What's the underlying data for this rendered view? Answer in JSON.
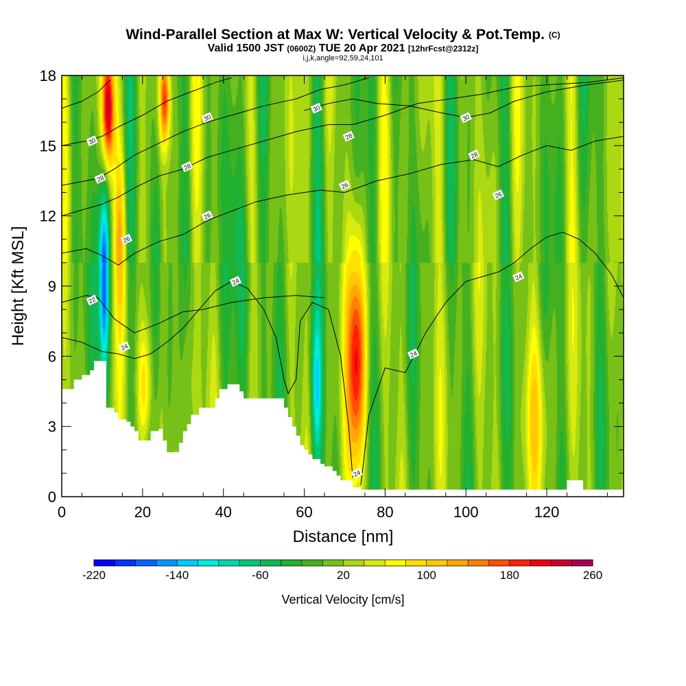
{
  "chart_data": {
    "type": "heatmap",
    "title": "Wind-Parallel Section at Max W: Vertical Velocity & Pot.Temp.",
    "title_mark": "(C)",
    "subtitle_parts": [
      "Valid 1500 JST ",
      "(0600Z)",
      " TUE 20 Apr 2021 ",
      "[12hrFcst@2312z]"
    ],
    "subtitle2": "i,j,k,angle=92,59,24,101",
    "xlabel": "Distance [nm]",
    "ylabel": "Height [Kft MSL]",
    "xlim": [
      0,
      139
    ],
    "ylim": [
      0,
      18
    ],
    "x_ticks": [
      0,
      20,
      40,
      60,
      80,
      100,
      120
    ],
    "y_ticks": [
      0,
      3,
      6,
      9,
      12,
      15,
      18
    ],
    "colorbar": {
      "label": "Vertical Velocity [cm/s]",
      "min": -220,
      "max": 260,
      "step": 20,
      "tick_labels": [
        -220,
        -140,
        -60,
        20,
        100,
        180,
        260
      ],
      "colors": [
        "#0000ff",
        "#0033ff",
        "#0066ff",
        "#0099ff",
        "#00ccff",
        "#00eedd",
        "#00d8aa",
        "#00c87a",
        "#11b855",
        "#22b030",
        "#44b020",
        "#77c018",
        "#aad812",
        "#d8ea10",
        "#ffff00",
        "#ffe000",
        "#ffc800",
        "#ffa800",
        "#ff8000",
        "#ff5000",
        "#ff2000",
        "#ee0010",
        "#cc0030",
        "#aa0055",
        "#880070",
        "#660088"
      ]
    },
    "terrain": [
      [
        0,
        4.6
      ],
      [
        2,
        4.6
      ],
      [
        3,
        5.0
      ],
      [
        5,
        5.2
      ],
      [
        7,
        5.4
      ],
      [
        8,
        5.8
      ],
      [
        10,
        5.8
      ],
      [
        11,
        3.8
      ],
      [
        12,
        3.8
      ],
      [
        13,
        3.6
      ],
      [
        14,
        3.3
      ],
      [
        16,
        3.2
      ],
      [
        17,
        3.0
      ],
      [
        18,
        2.8
      ],
      [
        19,
        2.4
      ],
      [
        21,
        2.4
      ],
      [
        22,
        2.8
      ],
      [
        24,
        2.9
      ],
      [
        25,
        2.4
      ],
      [
        26,
        1.9
      ],
      [
        28,
        1.9
      ],
      [
        29,
        2.3
      ],
      [
        30,
        2.8
      ],
      [
        31,
        3.1
      ],
      [
        32,
        3.5
      ],
      [
        34,
        3.8
      ],
      [
        36,
        3.8
      ],
      [
        38,
        4.2
      ],
      [
        39,
        4.6
      ],
      [
        41,
        4.8
      ],
      [
        43,
        4.8
      ],
      [
        44,
        4.5
      ],
      [
        45,
        4.2
      ],
      [
        47,
        4.2
      ],
      [
        54,
        4.2
      ],
      [
        55,
        3.8
      ],
      [
        56,
        3.4
      ],
      [
        57,
        3.0
      ],
      [
        58,
        2.6
      ],
      [
        59,
        2.2
      ],
      [
        60,
        2.0
      ],
      [
        61,
        1.8
      ],
      [
        62,
        1.6
      ],
      [
        64,
        1.4
      ],
      [
        65,
        1.3
      ],
      [
        67,
        1.1
      ],
      [
        68,
        0.9
      ],
      [
        69,
        0.7
      ],
      [
        71,
        0.7
      ],
      [
        72,
        0.4
      ],
      [
        74,
        0.3
      ],
      [
        124,
        0.3
      ],
      [
        125,
        0.7
      ],
      [
        128,
        0.7
      ],
      [
        129,
        0.3
      ],
      [
        139,
        0.3
      ]
    ],
    "updrafts": [
      {
        "x": 73,
        "y": 5.8,
        "wx": 2.2,
        "wy": 4.8,
        "w": 200
      },
      {
        "x": 11.5,
        "y": 16.5,
        "wx": 1.5,
        "wy": 2.5,
        "w": 220
      },
      {
        "x": 25.5,
        "y": 17.0,
        "wx": 1.3,
        "wy": 2.0,
        "w": 180
      },
      {
        "x": 20.5,
        "y": 4.5,
        "wx": 1.8,
        "wy": 3.0,
        "w": 100
      },
      {
        "x": 14.5,
        "y": 11.0,
        "wx": 1.6,
        "wy": 4.0,
        "w": 90
      },
      {
        "x": 117,
        "y": 3.5,
        "wx": 3.0,
        "wy": 3.5,
        "w": 60
      },
      {
        "x": 31,
        "y": 5.0,
        "wx": 1.5,
        "wy": 4.0,
        "w": 60
      }
    ],
    "downdrafts": [
      {
        "x": 10.5,
        "y": 9.0,
        "wx": 1.3,
        "wy": 4.5,
        "w": -200
      },
      {
        "x": 23.5,
        "y": 9.5,
        "wx": 1.3,
        "wy": 6.0,
        "w": -90
      },
      {
        "x": 63,
        "y": 4.5,
        "wx": 1.5,
        "wy": 3.5,
        "w": -110
      },
      {
        "x": 45,
        "y": 9.0,
        "wx": 3.0,
        "wy": 5.0,
        "w": -60
      }
    ],
    "theta_contours": [
      {
        "value": 22,
        "label": "22",
        "points": [
          [
            0,
            8.3
          ],
          [
            6,
            8.6
          ],
          [
            9,
            8.5
          ],
          [
            13,
            7.6
          ],
          [
            18,
            7.0
          ],
          [
            24,
            7.4
          ],
          [
            30,
            7.9
          ],
          [
            35,
            8.0
          ],
          [
            42,
            8.3
          ],
          [
            50,
            8.5
          ],
          [
            58,
            8.6
          ],
          [
            65,
            8.5
          ]
        ]
      },
      {
        "value": 24,
        "label": "24",
        "points": [
          [
            0,
            6.8
          ],
          [
            5,
            6.6
          ],
          [
            10,
            6.2
          ],
          [
            14,
            6.1
          ],
          [
            18,
            5.9
          ],
          [
            22,
            6.1
          ],
          [
            26,
            6.6
          ],
          [
            30,
            7.2
          ],
          [
            34,
            8.0
          ],
          [
            38,
            8.8
          ],
          [
            42,
            9.2
          ],
          [
            46,
            8.9
          ],
          [
            50,
            8.0
          ],
          [
            53,
            6.8
          ],
          [
            55,
            5.0
          ],
          [
            56,
            4.4
          ],
          [
            58,
            5.0
          ],
          [
            59,
            7.5
          ],
          [
            62,
            8.3
          ],
          [
            66,
            8.0
          ],
          [
            69,
            6.0
          ],
          [
            71,
            3.0
          ],
          [
            72,
            0.8
          ]
        ]
      },
      {
        "value": 24,
        "label": "24",
        "points": [
          [
            74,
            0.5
          ],
          [
            76,
            3.5
          ],
          [
            80,
            5.5
          ],
          [
            85,
            5.3
          ],
          [
            90,
            7.0
          ],
          [
            95,
            8.3
          ],
          [
            100,
            9.2
          ],
          [
            104,
            9.4
          ],
          [
            108,
            9.6
          ],
          [
            112,
            10.0
          ],
          [
            116,
            10.6
          ],
          [
            120,
            11.1
          ],
          [
            124,
            11.3
          ],
          [
            128,
            11.0
          ],
          [
            132,
            10.4
          ],
          [
            136,
            9.5
          ],
          [
            139,
            8.5
          ]
        ]
      },
      {
        "value": 26,
        "label": "26",
        "points": [
          [
            0,
            10.4
          ],
          [
            6,
            10.6
          ],
          [
            10,
            10.3
          ],
          [
            14,
            9.9
          ],
          [
            18,
            10.4
          ],
          [
            24,
            10.9
          ],
          [
            30,
            11.2
          ],
          [
            36,
            11.8
          ],
          [
            42,
            12.2
          ],
          [
            48,
            12.6
          ],
          [
            56,
            12.9
          ],
          [
            64,
            13.1
          ],
          [
            70,
            13.0
          ],
          [
            78,
            13.5
          ],
          [
            86,
            13.8
          ],
          [
            94,
            14.2
          ],
          [
            102,
            14.4
          ],
          [
            108,
            14.1
          ],
          [
            114,
            14.6
          ],
          [
            120,
            15.0
          ],
          [
            126,
            14.8
          ],
          [
            132,
            15.2
          ],
          [
            139,
            15.4
          ]
        ]
      },
      {
        "value": 28,
        "label": "28",
        "points": [
          [
            0,
            12.0
          ],
          [
            6,
            12.3
          ],
          [
            10,
            12.5
          ],
          [
            14,
            12.8
          ],
          [
            18,
            13.2
          ],
          [
            24,
            13.7
          ],
          [
            30,
            14.0
          ],
          [
            36,
            14.5
          ],
          [
            42,
            14.8
          ],
          [
            50,
            15.2
          ],
          [
            58,
            15.6
          ],
          [
            66,
            15.9
          ],
          [
            72,
            15.9
          ],
          [
            80,
            16.3
          ],
          [
            88,
            16.8
          ],
          [
            96,
            17.0
          ],
          [
            104,
            17.2
          ],
          [
            112,
            17.5
          ],
          [
            120,
            17.6
          ],
          [
            130,
            17.7
          ],
          [
            139,
            17.9
          ]
        ]
      },
      {
        "value": 28,
        "label": "28",
        "points": [
          [
            0,
            13.3
          ],
          [
            6,
            13.5
          ],
          [
            9,
            13.6
          ],
          [
            13,
            14.0
          ],
          [
            18,
            14.6
          ],
          [
            24,
            15.1
          ],
          [
            30,
            15.6
          ],
          [
            36,
            16.0
          ],
          [
            42,
            16.3
          ],
          [
            50,
            16.7
          ],
          [
            58,
            17.0
          ],
          [
            64,
            17.4
          ],
          [
            70,
            17.6
          ],
          [
            76,
            17.9
          ]
        ]
      },
      {
        "value": 30,
        "label": "30",
        "points": [
          [
            0,
            15.0
          ],
          [
            6,
            15.2
          ],
          [
            10,
            15.4
          ],
          [
            14,
            15.8
          ],
          [
            20,
            16.3
          ],
          [
            26,
            16.9
          ],
          [
            32,
            17.3
          ],
          [
            38,
            17.7
          ],
          [
            42,
            17.9
          ]
        ]
      },
      {
        "value": 30,
        "label": "30",
        "points": [
          [
            0,
            16.6
          ],
          [
            5,
            16.9
          ],
          [
            9,
            17.3
          ],
          [
            12,
            17.8
          ]
        ]
      },
      {
        "value": 30,
        "label": "30",
        "points": [
          [
            60,
            16.5
          ],
          [
            66,
            16.8
          ],
          [
            72,
            17.0
          ],
          [
            78,
            16.8
          ],
          [
            86,
            16.7
          ],
          [
            94,
            16.4
          ],
          [
            100,
            16.2
          ],
          [
            106,
            16.4
          ],
          [
            112,
            16.9
          ],
          [
            120,
            17.3
          ],
          [
            130,
            17.6
          ],
          [
            139,
            17.8
          ]
        ]
      }
    ],
    "contour_labels": [
      {
        "text": "30",
        "x": 7.5,
        "y": 15.2
      },
      {
        "text": "30",
        "x": 36,
        "y": 16.2
      },
      {
        "text": "30",
        "x": 63,
        "y": 16.6
      },
      {
        "text": "30",
        "x": 100,
        "y": 16.2
      },
      {
        "text": "28",
        "x": 9.5,
        "y": 13.6
      },
      {
        "text": "28",
        "x": 31,
        "y": 14.1
      },
      {
        "text": "28",
        "x": 71,
        "y": 15.4
      },
      {
        "text": "28",
        "x": 102,
        "y": 14.6
      },
      {
        "text": "26",
        "x": 36,
        "y": 12.0
      },
      {
        "text": "26",
        "x": 70,
        "y": 13.3
      },
      {
        "text": "26",
        "x": 108,
        "y": 12.9
      },
      {
        "text": "26",
        "x": 16,
        "y": 11.0
      },
      {
        "text": "24",
        "x": 43,
        "y": 9.2
      },
      {
        "text": "24",
        "x": 113,
        "y": 9.4
      },
      {
        "text": "24",
        "x": 87,
        "y": 6.1
      },
      {
        "text": "24",
        "x": 15.5,
        "y": 6.4
      },
      {
        "text": "24",
        "x": 73,
        "y": 1.0
      },
      {
        "text": "22",
        "x": 7.5,
        "y": 8.4
      }
    ]
  }
}
